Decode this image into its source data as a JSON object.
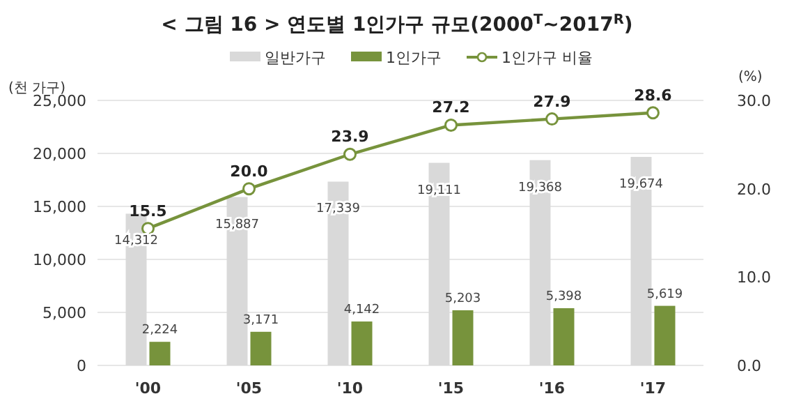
{
  "chart_data": {
    "type": "bar",
    "title": "< 그림 16 > 연도별 1인가구 규모(2000$^{T}$~2017$^{R}$)",
    "ylabel": "(천 가구)",
    "y2label": "(%)",
    "categories": [
      "'00",
      "'05",
      "'10",
      "'15",
      "'16",
      "'17"
    ],
    "series": [
      {
        "name": "일반가구",
        "color": "#d9d9d9",
        "values": [
          14312,
          15887,
          17339,
          19111,
          19368,
          19674
        ],
        "value_labels": [
          "14,312",
          "15,887",
          "17,339",
          "19,111",
          "19,368",
          "19,674"
        ]
      },
      {
        "name": "1인가구",
        "color": "#77933c",
        "values": [
          2224,
          3171,
          4142,
          5203,
          5398,
          5619
        ],
        "value_labels": [
          "2,224",
          "3,171",
          "4,142",
          "5,203",
          "5,398",
          "5,619"
        ]
      },
      {
        "name": "1인가구 비율",
        "type": "line",
        "axis": "y2",
        "color": "#77933c",
        "values": [
          15.5,
          20.0,
          23.9,
          27.2,
          27.9,
          28.6
        ],
        "value_labels": [
          "15.5",
          "20.0",
          "23.9",
          "27.2",
          "27.9",
          "28.6"
        ]
      }
    ],
    "ylim": [
      0,
      25000
    ],
    "yticks": [
      {
        "value": 0,
        "label": "0"
      },
      {
        "value": 5000,
        "label": "5,000"
      },
      {
        "value": 10000,
        "label": "10,000"
      },
      {
        "value": 15000,
        "label": "15,000"
      },
      {
        "value": 20000,
        "label": "20,000"
      },
      {
        "value": 25000,
        "label": "25,000"
      }
    ],
    "y2lim": [
      0,
      30
    ],
    "y2ticks": [
      {
        "value": 0,
        "label": "0.0"
      },
      {
        "value": 10,
        "label": "10.0"
      },
      {
        "value": 20,
        "label": "20.0"
      },
      {
        "value": 30,
        "label": "30.0"
      }
    ],
    "grid": "y",
    "legend": "top",
    "marker": "circle",
    "line_style": "solid"
  }
}
